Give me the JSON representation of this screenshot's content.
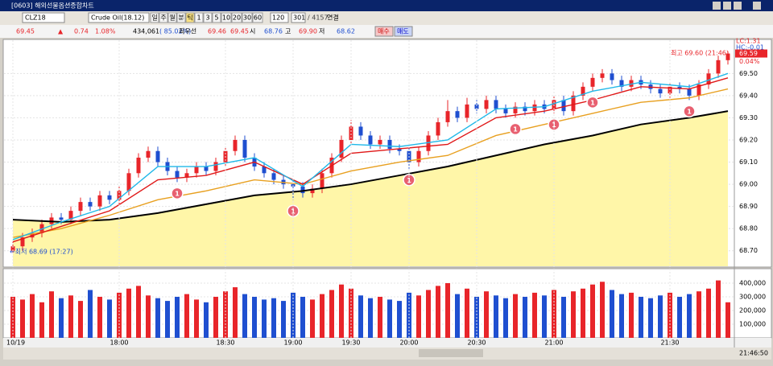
{
  "window": {
    "title": "[0603] 해외선물옵션종합차트"
  },
  "toolbar": {
    "code": "CLZ18",
    "product": "Crude Oil(18.12)",
    "periods": [
      "일",
      "주",
      "월",
      "분",
      "틱",
      "1",
      "3",
      "5",
      "10",
      "20",
      "30",
      "60"
    ],
    "interval": "120",
    "count": "301",
    "total": "/ 4157",
    "link": "연결"
  },
  "quote": {
    "price": "69.45",
    "arrow": "▲",
    "change": "0.74",
    "rate": "1.08%",
    "volume": "434,061",
    "volume_rate": "( 85.02%)",
    "best_label": "최우선",
    "ask": "69.46",
    "bid": "69.45",
    "open_label": "시",
    "open": "68.76",
    "high_label": "고",
    "high": "69.90",
    "low_label": "저",
    "low": "68.62",
    "buy": "매수",
    "sell": "매도"
  },
  "chart_data": {
    "type": "candlestick",
    "ylim": [
      68.63,
      69.65
    ],
    "yticks": [
      {
        "value": 68.7,
        "label": "68.70"
      },
      {
        "value": 68.8,
        "label": "68.80"
      },
      {
        "value": 68.9,
        "label": "68.90"
      },
      {
        "value": 69.0,
        "label": "69.00"
      },
      {
        "value": 69.1,
        "label": "69.10"
      },
      {
        "value": 69.2,
        "label": "69.20"
      },
      {
        "value": 69.3,
        "label": "69.30"
      },
      {
        "value": 69.4,
        "label": "69.40"
      },
      {
        "value": 69.5,
        "label": "69.50"
      }
    ],
    "up_color": "#e8252a",
    "down_color": "#1f4fd0",
    "candles": [
      [
        68.7,
        68.74,
        68.69,
        68.72
      ],
      [
        68.72,
        68.78,
        68.7,
        68.76
      ],
      [
        68.76,
        68.8,
        68.74,
        68.78
      ],
      [
        68.78,
        68.84,
        68.76,
        68.82
      ],
      [
        68.82,
        68.87,
        68.8,
        68.85
      ],
      [
        68.85,
        68.87,
        68.82,
        68.84
      ],
      [
        68.84,
        68.9,
        68.82,
        68.88
      ],
      [
        68.88,
        68.94,
        68.86,
        68.92
      ],
      [
        68.92,
        68.94,
        68.88,
        68.9
      ],
      [
        68.9,
        68.97,
        68.88,
        68.95
      ],
      [
        68.95,
        68.97,
        68.91,
        68.93
      ],
      [
        68.93,
        68.99,
        68.91,
        68.97
      ],
      [
        68.97,
        69.07,
        68.95,
        69.05
      ],
      [
        69.05,
        69.14,
        69.03,
        69.12
      ],
      [
        69.12,
        69.17,
        69.1,
        69.15
      ],
      [
        69.15,
        69.17,
        69.08,
        69.1
      ],
      [
        69.1,
        69.12,
        69.04,
        69.06
      ],
      [
        69.06,
        69.08,
        69.01,
        69.03
      ],
      [
        69.03,
        69.07,
        69.01,
        69.05
      ],
      [
        69.05,
        69.1,
        69.03,
        69.08
      ],
      [
        69.08,
        69.1,
        69.04,
        69.06
      ],
      [
        69.06,
        69.12,
        69.04,
        69.1
      ],
      [
        69.1,
        69.17,
        69.08,
        69.15
      ],
      [
        69.15,
        69.22,
        69.13,
        69.2
      ],
      [
        69.2,
        69.22,
        69.1,
        69.12
      ],
      [
        69.12,
        69.14,
        69.06,
        69.08
      ],
      [
        69.08,
        69.1,
        69.03,
        69.05
      ],
      [
        69.05,
        69.07,
        69.0,
        69.02
      ],
      [
        69.02,
        69.04,
        68.98,
        69.0
      ],
      [
        69.0,
        69.02,
        68.93,
        68.99
      ],
      [
        68.99,
        69.01,
        68.94,
        68.96
      ],
      [
        68.96,
        69.0,
        68.94,
        68.98
      ],
      [
        68.98,
        69.07,
        68.96,
        69.05
      ],
      [
        69.05,
        69.14,
        69.03,
        69.12
      ],
      [
        69.12,
        69.22,
        69.1,
        69.2
      ],
      [
        69.2,
        69.29,
        69.18,
        69.26
      ],
      [
        69.26,
        69.28,
        69.2,
        69.22
      ],
      [
        69.22,
        69.24,
        69.16,
        69.18
      ],
      [
        69.18,
        69.22,
        69.16,
        69.2
      ],
      [
        69.2,
        69.22,
        69.14,
        69.16
      ],
      [
        69.16,
        69.18,
        69.13,
        69.15
      ],
      [
        69.15,
        69.17,
        69.07,
        69.1
      ],
      [
        69.1,
        69.17,
        69.08,
        69.15
      ],
      [
        69.15,
        69.24,
        69.13,
        69.22
      ],
      [
        69.22,
        69.3,
        69.2,
        69.28
      ],
      [
        69.28,
        69.38,
        69.26,
        69.33
      ],
      [
        69.33,
        69.35,
        69.28,
        69.3
      ],
      [
        69.3,
        69.39,
        69.28,
        69.36
      ],
      [
        69.36,
        69.38,
        69.32,
        69.34
      ],
      [
        69.34,
        69.4,
        69.32,
        69.38
      ],
      [
        69.38,
        69.4,
        69.32,
        69.34
      ],
      [
        69.34,
        69.36,
        69.3,
        69.32
      ],
      [
        69.32,
        69.37,
        69.3,
        69.35
      ],
      [
        69.35,
        69.37,
        69.31,
        69.33
      ],
      [
        69.33,
        69.38,
        69.31,
        69.36
      ],
      [
        69.36,
        69.38,
        69.32,
        69.34
      ],
      [
        69.34,
        69.4,
        69.32,
        69.38
      ],
      [
        69.38,
        69.4,
        69.31,
        69.33
      ],
      [
        69.33,
        69.42,
        69.31,
        69.4
      ],
      [
        69.4,
        69.46,
        69.38,
        69.44
      ],
      [
        69.44,
        69.5,
        69.42,
        69.48
      ],
      [
        69.48,
        69.52,
        69.46,
        69.5
      ],
      [
        69.5,
        69.52,
        69.45,
        69.47
      ],
      [
        69.47,
        69.49,
        69.42,
        69.44
      ],
      [
        69.44,
        69.49,
        69.42,
        69.47
      ],
      [
        69.47,
        69.49,
        69.43,
        69.45
      ],
      [
        69.45,
        69.47,
        69.41,
        69.43
      ],
      [
        69.43,
        69.45,
        69.39,
        69.41
      ],
      [
        69.41,
        69.46,
        69.39,
        69.44
      ],
      [
        69.44,
        69.46,
        69.41,
        69.43
      ],
      [
        69.43,
        69.45,
        69.38,
        69.4
      ],
      [
        69.4,
        69.47,
        69.38,
        69.45
      ],
      [
        69.45,
        69.52,
        69.43,
        69.5
      ],
      [
        69.5,
        69.58,
        69.48,
        69.56
      ],
      [
        69.56,
        69.6,
        69.54,
        69.59
      ]
    ],
    "ma_index": [
      0,
      5,
      10,
      15,
      20,
      25,
      30,
      35,
      40,
      45,
      50,
      55,
      60,
      65,
      70,
      74
    ],
    "ma_series": [
      {
        "color": "#000000",
        "values": [
          68.84,
          68.83,
          68.84,
          68.87,
          68.91,
          68.95,
          68.97,
          69.0,
          69.04,
          69.08,
          69.13,
          69.18,
          69.22,
          69.27,
          69.3,
          69.33
        ]
      },
      {
        "color": "#e8a020",
        "values": [
          68.76,
          68.8,
          68.86,
          68.93,
          68.97,
          69.02,
          69.0,
          69.06,
          69.1,
          69.13,
          69.22,
          69.27,
          69.32,
          69.37,
          69.39,
          69.43
        ]
      },
      {
        "color": "#e01818",
        "values": [
          68.74,
          68.81,
          68.88,
          69.02,
          69.04,
          69.1,
          69.0,
          69.14,
          69.16,
          69.18,
          69.3,
          69.33,
          69.38,
          69.44,
          69.43,
          69.48
        ]
      },
      {
        "color": "#20b8e8",
        "values": [
          68.75,
          68.83,
          68.9,
          69.08,
          69.08,
          69.12,
          68.99,
          69.18,
          69.17,
          69.2,
          69.34,
          69.35,
          69.42,
          69.46,
          69.44,
          69.5
        ]
      }
    ],
    "fill_color": "#fff6a8",
    "markers": [
      {
        "label": "1",
        "index": 17
      },
      {
        "label": "1",
        "index": 29
      },
      {
        "label": "1",
        "index": 41
      },
      {
        "label": "1",
        "index": 52
      },
      {
        "label": "1",
        "index": 56
      },
      {
        "label": "1",
        "index": 60
      },
      {
        "label": "1",
        "index": 70
      }
    ],
    "high_note": "최고 69.60 (21:46)",
    "low_note": "←최저 68.69 (17:27)",
    "lc": "LC:1.31",
    "hc": "HC:-0.01",
    "last": "69.59",
    "last_rate": "0.04%",
    "volume": [
      300000,
      280000,
      320000,
      260000,
      340000,
      290000,
      310000,
      270000,
      350000,
      300000,
      280000,
      330000,
      360000,
      380000,
      310000,
      290000,
      270000,
      300000,
      320000,
      280000,
      260000,
      300000,
      340000,
      370000,
      320000,
      300000,
      280000,
      290000,
      270000,
      330000,
      300000,
      280000,
      320000,
      350000,
      390000,
      360000,
      310000,
      290000,
      300000,
      280000,
      270000,
      330000,
      310000,
      350000,
      380000,
      400000,
      320000,
      360000,
      300000,
      340000,
      310000,
      290000,
      320000,
      300000,
      330000,
      310000,
      350000,
      300000,
      340000,
      360000,
      390000,
      410000,
      350000,
      320000,
      330000,
      300000,
      290000,
      310000,
      330000,
      300000,
      320000,
      340000,
      360000,
      420000,
      260000
    ],
    "vlim": [
      0,
      500000
    ],
    "vticks": [
      {
        "value": 100000,
        "label": "100,000"
      },
      {
        "value": 200000,
        "label": "200,000"
      },
      {
        "value": 300000,
        "label": "300,000"
      },
      {
        "value": 400000,
        "label": "400,000"
      }
    ],
    "time_labels": [
      {
        "index": 0,
        "label": "10/19"
      },
      {
        "index": 11,
        "label": "18:00"
      },
      {
        "index": 22,
        "label": "18:30"
      },
      {
        "index": 29,
        "label": "19:00"
      },
      {
        "index": 35,
        "label": "19:30"
      },
      {
        "index": 41,
        "label": "20:00"
      },
      {
        "index": 48,
        "label": "20:30"
      },
      {
        "index": 56,
        "label": "21:00"
      },
      {
        "index": 68,
        "label": "21:30"
      }
    ],
    "clock": "21:46:50"
  }
}
